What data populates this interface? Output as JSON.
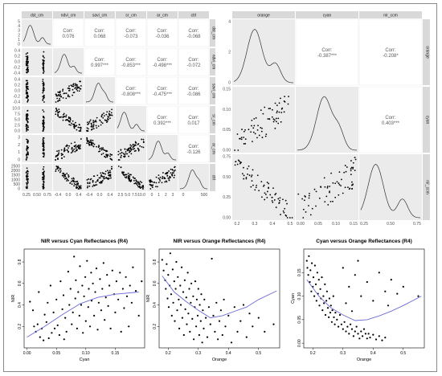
{
  "chart_data": [
    {
      "type": "scatter",
      "title": "",
      "variables": [
        "dst_cm",
        "ndvi_cm",
        "savi_cm",
        "sr_cm",
        "ar_cm",
        "ctrl"
      ],
      "strip_labels": [
        "dst_cm",
        "ndvi_cm",
        "savi_cm",
        "sr_cm",
        "ar_cm",
        "ctrl"
      ],
      "correlations": [
        {
          "row": 0,
          "col": 1,
          "text": "Corr:\n0.076"
        },
        {
          "row": 0,
          "col": 2,
          "text": "Corr:\n0.068"
        },
        {
          "row": 0,
          "col": 3,
          "text": "Corr:\n-0.073"
        },
        {
          "row": 0,
          "col": 4,
          "text": "Corr:\n-0.036"
        },
        {
          "row": 0,
          "col": 5,
          "text": "Corr:\n-0.068"
        },
        {
          "row": 1,
          "col": 2,
          "text": "Corr:\n0.997***"
        },
        {
          "row": 1,
          "col": 3,
          "text": "Corr:\n-0.853***"
        },
        {
          "row": 1,
          "col": 4,
          "text": "Corr:\n-0.498***"
        },
        {
          "row": 1,
          "col": 5,
          "text": "Corr:\n-0.072"
        },
        {
          "row": 2,
          "col": 3,
          "text": "Corr:\n-0.808***"
        },
        {
          "row": 2,
          "col": 4,
          "text": "Corr:\n-0.475***"
        },
        {
          "row": 2,
          "col": 5,
          "text": "Corr:\n-0.086"
        },
        {
          "row": 3,
          "col": 4,
          "text": "Corr:\n0.392***"
        },
        {
          "row": 3,
          "col": 5,
          "text": "Corr:\n0.017"
        },
        {
          "row": 4,
          "col": 5,
          "text": "Corr:\n-0.126"
        }
      ],
      "y_ticks": [
        [
          "5",
          "4",
          "3",
          "2",
          "1",
          "0"
        ],
        [
          "0.4",
          "0.2",
          "0.0",
          "-0.2",
          "-0.4"
        ],
        [
          "0.4",
          "0.2",
          "0.0",
          "-0.2",
          "-0.4"
        ],
        [
          "10.0",
          "7.5",
          "5.0",
          "2.5",
          "0.0"
        ],
        [
          "3",
          "2",
          "1",
          "0"
        ],
        [
          "2500",
          "2000",
          "1500",
          "1000",
          "500",
          "0"
        ]
      ],
      "x_ticks": [
        [
          "0.25",
          "0.50",
          "0.75"
        ],
        [
          "-0.4",
          "0.0",
          "0.4"
        ],
        [
          "-0.4",
          "0.0",
          "0.4"
        ],
        [
          "2.5",
          "5.0",
          "7.5",
          "10.0"
        ],
        [
          "0",
          "1",
          "2",
          "3"
        ],
        [
          "0",
          "500"
        ]
      ]
    },
    {
      "type": "scatter",
      "title": "",
      "variables": [
        "orange",
        "cyan",
        "nir_ccm"
      ],
      "strip_labels": [
        "orange",
        "cyan",
        "nir_ccm"
      ],
      "correlations": [
        {
          "row": 0,
          "col": 1,
          "text": "Corr:\n-0.387***"
        },
        {
          "row": 0,
          "col": 2,
          "text": "Corr:\n-0.208*"
        },
        {
          "row": 1,
          "col": 2,
          "text": "Corr:\n0.403***"
        }
      ],
      "y_ticks": [
        [
          "4",
          "2",
          "0"
        ],
        [
          "0.15",
          "0.10",
          "0.05",
          "0.00"
        ],
        [
          "0.75",
          "0.50",
          "0.25",
          "0.00"
        ]
      ],
      "x_ticks": [
        [
          "0.2",
          "0.3",
          "0.4",
          "0.5"
        ],
        [
          "0.00",
          "0.05",
          "0.10",
          "0.15"
        ],
        [
          "0.25",
          "0.50",
          "0.75"
        ]
      ]
    },
    {
      "type": "scatter",
      "title": "NIR versus Cyan Reflectances (R4)",
      "xlabel": "Cyan",
      "ylabel": "NIR",
      "xlim": [
        -0.005,
        0.2
      ],
      "ylim": [
        0.0,
        0.92
      ],
      "x_ticks": [
        "0.00",
        "0.05",
        "0.10",
        "0.15"
      ],
      "y_ticks": [
        "0.2",
        "0.4",
        "0.6",
        "0.8"
      ],
      "smooth": {
        "x": [
          0.0,
          0.03,
          0.06,
          0.09,
          0.12,
          0.15,
          0.19
        ],
        "y": [
          0.1,
          0.2,
          0.31,
          0.41,
          0.47,
          0.5,
          0.52
        ]
      },
      "points": [
        [
          0.005,
          0.43
        ],
        [
          0.01,
          0.35
        ],
        [
          0.012,
          0.2
        ],
        [
          0.015,
          0.15
        ],
        [
          0.018,
          0.22
        ],
        [
          0.02,
          0.52
        ],
        [
          0.022,
          0.1
        ],
        [
          0.025,
          0.18
        ],
        [
          0.028,
          0.07
        ],
        [
          0.03,
          0.31
        ],
        [
          0.033,
          0.24
        ],
        [
          0.035,
          0.42
        ],
        [
          0.037,
          0.09
        ],
        [
          0.04,
          0.58
        ],
        [
          0.042,
          0.14
        ],
        [
          0.045,
          0.33
        ],
        [
          0.047,
          0.18
        ],
        [
          0.05,
          0.45
        ],
        [
          0.052,
          0.21
        ],
        [
          0.055,
          0.12
        ],
        [
          0.057,
          0.62
        ],
        [
          0.06,
          0.36
        ],
        [
          0.062,
          0.49
        ],
        [
          0.063,
          0.08
        ],
        [
          0.065,
          0.28
        ],
        [
          0.067,
          0.15
        ],
        [
          0.07,
          0.71
        ],
        [
          0.072,
          0.4
        ],
        [
          0.074,
          0.55
        ],
        [
          0.076,
          0.22
        ],
        [
          0.078,
          0.33
        ],
        [
          0.08,
          0.85
        ],
        [
          0.082,
          0.46
        ],
        [
          0.083,
          0.63
        ],
        [
          0.085,
          0.18
        ],
        [
          0.087,
          0.52
        ],
        [
          0.089,
          0.3
        ],
        [
          0.09,
          0.76
        ],
        [
          0.092,
          0.4
        ],
        [
          0.094,
          0.58
        ],
        [
          0.095,
          0.14
        ],
        [
          0.097,
          0.48
        ],
        [
          0.099,
          0.66
        ],
        [
          0.1,
          0.25
        ],
        [
          0.102,
          0.81
        ],
        [
          0.104,
          0.38
        ],
        [
          0.105,
          0.55
        ],
        [
          0.107,
          0.2
        ],
        [
          0.109,
          0.7
        ],
        [
          0.11,
          0.44
        ],
        [
          0.112,
          0.6
        ],
        [
          0.114,
          0.3
        ],
        [
          0.116,
          0.52
        ],
        [
          0.118,
          0.74
        ],
        [
          0.12,
          0.17
        ],
        [
          0.122,
          0.42
        ],
        [
          0.124,
          0.64
        ],
        [
          0.126,
          0.35
        ],
        [
          0.128,
          0.55
        ],
        [
          0.13,
          0.79
        ],
        [
          0.132,
          0.26
        ],
        [
          0.134,
          0.47
        ],
        [
          0.136,
          0.68
        ],
        [
          0.138,
          0.39
        ],
        [
          0.14,
          0.58
        ],
        [
          0.142,
          0.18
        ],
        [
          0.145,
          0.72
        ],
        [
          0.148,
          0.5
        ],
        [
          0.15,
          0.33
        ],
        [
          0.152,
          0.62
        ],
        [
          0.155,
          0.45
        ],
        [
          0.158,
          0.7
        ],
        [
          0.16,
          0.15
        ],
        [
          0.163,
          0.55
        ],
        [
          0.165,
          0.37
        ],
        [
          0.168,
          0.66
        ],
        [
          0.17,
          0.48
        ],
        [
          0.173,
          0.2
        ],
        [
          0.175,
          0.58
        ],
        [
          0.178,
          0.42
        ],
        [
          0.18,
          0.75
        ],
        [
          0.185,
          0.53
        ],
        [
          0.19,
          0.3
        ],
        [
          0.195,
          0.62
        ]
      ]
    },
    {
      "type": "scatter",
      "title": "NIR versus Orange Reflectances (R4)",
      "xlabel": "Orange",
      "ylabel": "NIR",
      "xlim": [
        0.17,
        0.57
      ],
      "ylim": [
        0.0,
        0.92
      ],
      "x_ticks": [
        "0.2",
        "0.3",
        "0.4",
        "0.5"
      ],
      "y_ticks": [
        "0.2",
        "0.4",
        "0.6",
        "0.8"
      ],
      "smooth": {
        "x": [
          0.18,
          0.22,
          0.26,
          0.3,
          0.34,
          0.38,
          0.42,
          0.46,
          0.5,
          0.56
        ],
        "y": [
          0.67,
          0.52,
          0.43,
          0.35,
          0.28,
          0.3,
          0.34,
          0.38,
          0.45,
          0.53
        ]
      },
      "points": [
        [
          0.18,
          0.82
        ],
        [
          0.185,
          0.72
        ],
        [
          0.19,
          0.63
        ],
        [
          0.192,
          0.55
        ],
        [
          0.195,
          0.78
        ],
        [
          0.198,
          0.46
        ],
        [
          0.2,
          0.68
        ],
        [
          0.202,
          0.38
        ],
        [
          0.205,
          0.58
        ],
        [
          0.207,
          0.88
        ],
        [
          0.21,
          0.5
        ],
        [
          0.212,
          0.3
        ],
        [
          0.215,
          0.73
        ],
        [
          0.217,
          0.42
        ],
        [
          0.22,
          0.62
        ],
        [
          0.222,
          0.25
        ],
        [
          0.225,
          0.55
        ],
        [
          0.227,
          0.8
        ],
        [
          0.23,
          0.35
        ],
        [
          0.232,
          0.66
        ],
        [
          0.235,
          0.45
        ],
        [
          0.237,
          0.18
        ],
        [
          0.24,
          0.58
        ],
        [
          0.242,
          0.4
        ],
        [
          0.245,
          0.75
        ],
        [
          0.247,
          0.28
        ],
        [
          0.25,
          0.52
        ],
        [
          0.252,
          0.12
        ],
        [
          0.255,
          0.63
        ],
        [
          0.257,
          0.36
        ],
        [
          0.26,
          0.47
        ],
        [
          0.262,
          0.22
        ],
        [
          0.265,
          0.7
        ],
        [
          0.267,
          0.32
        ],
        [
          0.27,
          0.55
        ],
        [
          0.272,
          0.15
        ],
        [
          0.275,
          0.42
        ],
        [
          0.277,
          0.6
        ],
        [
          0.28,
          0.27
        ],
        [
          0.283,
          0.48
        ],
        [
          0.285,
          0.08
        ],
        [
          0.288,
          0.38
        ],
        [
          0.29,
          0.62
        ],
        [
          0.293,
          0.2
        ],
        [
          0.295,
          0.45
        ],
        [
          0.298,
          0.3
        ],
        [
          0.3,
          0.55
        ],
        [
          0.303,
          0.12
        ],
        [
          0.305,
          0.4
        ],
        [
          0.308,
          0.25
        ],
        [
          0.31,
          0.5
        ],
        [
          0.313,
          0.05
        ],
        [
          0.315,
          0.35
        ],
        [
          0.318,
          0.18
        ],
        [
          0.32,
          0.45
        ],
        [
          0.325,
          0.28
        ],
        [
          0.33,
          0.1
        ],
        [
          0.335,
          0.38
        ],
        [
          0.34,
          0.22
        ],
        [
          0.345,
          0.83
        ],
        [
          0.35,
          0.3
        ],
        [
          0.355,
          0.15
        ],
        [
          0.36,
          0.42
        ],
        [
          0.365,
          0.08
        ],
        [
          0.37,
          0.25
        ],
        [
          0.375,
          0.35
        ],
        [
          0.38,
          0.12
        ],
        [
          0.385,
          0.45
        ],
        [
          0.39,
          0.2
        ],
        [
          0.4,
          0.3
        ],
        [
          0.41,
          0.05
        ],
        [
          0.42,
          0.38
        ],
        [
          0.43,
          0.15
        ],
        [
          0.44,
          0.25
        ],
        [
          0.45,
          0.4
        ],
        [
          0.46,
          0.1
        ],
        [
          0.47,
          0.32
        ],
        [
          0.48,
          0.2
        ],
        [
          0.5,
          0.28
        ],
        [
          0.52,
          0.15
        ],
        [
          0.55,
          0.22
        ]
      ]
    },
    {
      "type": "scatter",
      "title": "Cyan versus Orange Reflectances (R4)",
      "xlabel": "Orange",
      "ylabel": "Cyan",
      "xlim": [
        0.17,
        0.57
      ],
      "ylim": [
        -0.01,
        0.2
      ],
      "x_ticks": [
        "0.2",
        "0.3",
        "0.4",
        "0.5"
      ],
      "y_ticks": [
        "0.00",
        "0.05",
        "0.10",
        "0.15"
      ],
      "smooth": {
        "x": [
          0.18,
          0.22,
          0.26,
          0.3,
          0.34,
          0.38,
          0.42,
          0.46,
          0.5,
          0.56
        ],
        "y": [
          0.135,
          0.1,
          0.075,
          0.06,
          0.048,
          0.05,
          0.058,
          0.068,
          0.08,
          0.1
        ]
      },
      "points": [
        [
          0.18,
          0.175
        ],
        [
          0.182,
          0.16
        ],
        [
          0.185,
          0.145
        ],
        [
          0.187,
          0.185
        ],
        [
          0.19,
          0.13
        ],
        [
          0.192,
          0.155
        ],
        [
          0.195,
          0.11
        ],
        [
          0.197,
          0.17
        ],
        [
          0.2,
          0.12
        ],
        [
          0.202,
          0.14
        ],
        [
          0.205,
          0.1
        ],
        [
          0.207,
          0.165
        ],
        [
          0.21,
          0.125
        ],
        [
          0.212,
          0.09
        ],
        [
          0.215,
          0.15
        ],
        [
          0.217,
          0.105
        ],
        [
          0.22,
          0.135
        ],
        [
          0.222,
          0.08
        ],
        [
          0.225,
          0.115
        ],
        [
          0.227,
          0.095
        ],
        [
          0.23,
          0.14
        ],
        [
          0.232,
          0.07
        ],
        [
          0.235,
          0.1
        ],
        [
          0.237,
          0.085
        ],
        [
          0.24,
          0.125
        ],
        [
          0.242,
          0.06
        ],
        [
          0.245,
          0.09
        ],
        [
          0.247,
          0.11
        ],
        [
          0.25,
          0.075
        ],
        [
          0.253,
          0.055
        ],
        [
          0.255,
          0.095
        ],
        [
          0.258,
          0.065
        ],
        [
          0.26,
          0.08
        ],
        [
          0.263,
          0.045
        ],
        [
          0.265,
          0.07
        ],
        [
          0.268,
          0.1
        ],
        [
          0.27,
          0.055
        ],
        [
          0.273,
          0.04
        ],
        [
          0.275,
          0.065
        ],
        [
          0.28,
          0.05
        ],
        [
          0.285,
          0.035
        ],
        [
          0.29,
          0.06
        ],
        [
          0.295,
          0.04
        ],
        [
          0.3,
          0.03
        ],
        [
          0.305,
          0.045
        ],
        [
          0.31,
          0.025
        ],
        [
          0.315,
          0.035
        ],
        [
          0.32,
          0.02
        ],
        [
          0.325,
          0.04
        ],
        [
          0.33,
          0.03
        ],
        [
          0.335,
          0.015
        ],
        [
          0.34,
          0.025
        ],
        [
          0.345,
          0.035
        ],
        [
          0.35,
          0.02
        ],
        [
          0.355,
          0.01
        ],
        [
          0.36,
          0.025
        ],
        [
          0.365,
          0.015
        ],
        [
          0.37,
          0.03
        ],
        [
          0.375,
          0.02
        ],
        [
          0.38,
          0.01
        ],
        [
          0.385,
          0.02
        ],
        [
          0.39,
          0.012
        ],
        [
          0.4,
          0.018
        ],
        [
          0.41,
          0.008
        ],
        [
          0.42,
          0.015
        ],
        [
          0.43,
          0.006
        ],
        [
          0.44,
          0.012
        ],
        [
          0.3,
          0.16
        ],
        [
          0.32,
          0.12
        ],
        [
          0.34,
          0.145
        ],
        [
          0.36,
          0.1
        ],
        [
          0.38,
          0.13
        ],
        [
          0.4,
          0.09
        ],
        [
          0.42,
          0.15
        ],
        [
          0.44,
          0.11
        ],
        [
          0.46,
          0.135
        ],
        [
          0.48,
          0.105
        ],
        [
          0.5,
          0.12
        ],
        [
          0.55,
          0.1
        ],
        [
          0.35,
          0.175
        ],
        [
          0.45,
          0.08
        ],
        [
          0.31,
          0.085
        ],
        [
          0.33,
          0.068
        ]
      ]
    }
  ]
}
